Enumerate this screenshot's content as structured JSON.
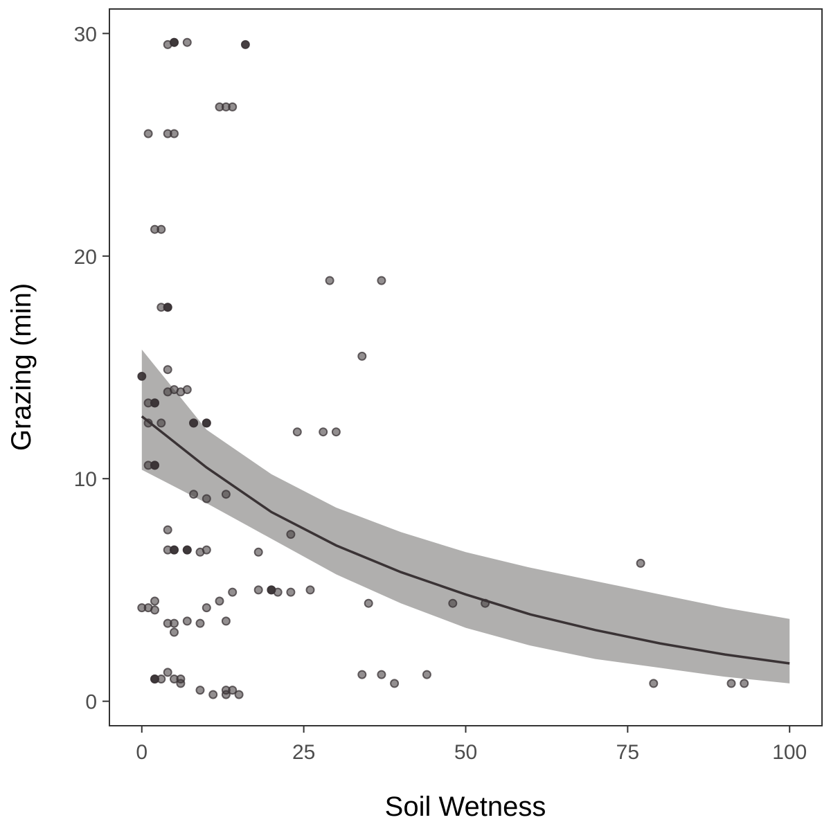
{
  "chart_data": {
    "type": "scatter",
    "title": "",
    "xlabel": "Soil Wetness",
    "ylabel": "Grazing (min)",
    "xlim": [
      -5,
      105
    ],
    "ylim": [
      -1.1,
      31.1
    ],
    "x_ticks": [
      0,
      25,
      50,
      75,
      100
    ],
    "y_ticks": [
      0,
      10,
      20,
      30
    ],
    "grid": false,
    "legend": "none",
    "colors": {
      "points": "#3a3335",
      "fit_line": "#3a3335",
      "band": "#b0afae",
      "frame": "#333333"
    },
    "points": [
      [
        5,
        29.6
      ],
      [
        7,
        29.6
      ],
      [
        4,
        29.5
      ],
      [
        16,
        29.5
      ],
      [
        5,
        29.6
      ],
      [
        12,
        26.7
      ],
      [
        13,
        26.7
      ],
      [
        14,
        26.7
      ],
      [
        1,
        25.5
      ],
      [
        4,
        25.5
      ],
      [
        5,
        25.5
      ],
      [
        2,
        21.2
      ],
      [
        3,
        21.2
      ],
      [
        29,
        18.9
      ],
      [
        37,
        18.9
      ],
      [
        3,
        17.7
      ],
      [
        4,
        17.7
      ],
      [
        4,
        17.7
      ],
      [
        34,
        15.5
      ],
      [
        4,
        14.9
      ],
      [
        0,
        14.6
      ],
      [
        4,
        13.9
      ],
      [
        5,
        14.0
      ],
      [
        6,
        13.9
      ],
      [
        7,
        14.0
      ],
      [
        1,
        13.4
      ],
      [
        2,
        13.4
      ],
      [
        2,
        13.4
      ],
      [
        1,
        12.5
      ],
      [
        3,
        12.5
      ],
      [
        8,
        12.5
      ],
      [
        8,
        12.5
      ],
      [
        10,
        12.5
      ],
      [
        10,
        12.5
      ],
      [
        24,
        12.1
      ],
      [
        28,
        12.1
      ],
      [
        30,
        12.1
      ],
      [
        1,
        10.6
      ],
      [
        2,
        10.6
      ],
      [
        2,
        10.6
      ],
      [
        8,
        9.3
      ],
      [
        10,
        9.1
      ],
      [
        13,
        9.3
      ],
      [
        4,
        7.7
      ],
      [
        23,
        7.5
      ],
      [
        4,
        6.8
      ],
      [
        5,
        6.8
      ],
      [
        5,
        6.8
      ],
      [
        7,
        6.8
      ],
      [
        7,
        6.8
      ],
      [
        9,
        6.7
      ],
      [
        10,
        6.8
      ],
      [
        18,
        6.7
      ],
      [
        77,
        6.2
      ],
      [
        18,
        5.0
      ],
      [
        20,
        5.0
      ],
      [
        20,
        5.0
      ],
      [
        21,
        4.9
      ],
      [
        23,
        4.9
      ],
      [
        26,
        5.0
      ],
      [
        14,
        4.9
      ],
      [
        2,
        4.5
      ],
      [
        12,
        4.5
      ],
      [
        35,
        4.4
      ],
      [
        48,
        4.4
      ],
      [
        53,
        4.4
      ],
      [
        0,
        4.2
      ],
      [
        1,
        4.2
      ],
      [
        2,
        4.1
      ],
      [
        10,
        4.2
      ],
      [
        4,
        3.5
      ],
      [
        5,
        3.5
      ],
      [
        7,
        3.6
      ],
      [
        9,
        3.5
      ],
      [
        13,
        3.6
      ],
      [
        5,
        3.1
      ],
      [
        4,
        1.3
      ],
      [
        34,
        1.2
      ],
      [
        37,
        1.2
      ],
      [
        44,
        1.2
      ],
      [
        2,
        1.0
      ],
      [
        2,
        1.0
      ],
      [
        3,
        1.0
      ],
      [
        5,
        1.0
      ],
      [
        6,
        1.0
      ],
      [
        6,
        0.8
      ],
      [
        39,
        0.8
      ],
      [
        79,
        0.8
      ],
      [
        91,
        0.8
      ],
      [
        93,
        0.8
      ],
      [
        9,
        0.5
      ],
      [
        13,
        0.5
      ],
      [
        14,
        0.5
      ],
      [
        11,
        0.3
      ],
      [
        13,
        0.3
      ],
      [
        15,
        0.3
      ]
    ],
    "dark_points": [
      [
        0,
        14.6
      ],
      [
        4,
        17.7
      ],
      [
        5,
        29.6
      ],
      [
        16,
        29.5
      ],
      [
        2,
        13.4
      ],
      [
        8,
        12.5
      ],
      [
        10,
        12.5
      ],
      [
        2,
        10.6
      ],
      [
        5,
        6.8
      ],
      [
        7,
        6.8
      ],
      [
        20,
        5.0
      ],
      [
        2,
        1.0
      ]
    ],
    "fit_line": {
      "x": [
        0,
        10,
        20,
        30,
        40,
        50,
        60,
        70,
        80,
        90,
        100
      ],
      "y": [
        12.8,
        10.5,
        8.5,
        7.0,
        5.8,
        4.8,
        3.9,
        3.2,
        2.6,
        2.1,
        1.7
      ]
    },
    "confidence_band": {
      "x": [
        0,
        10,
        20,
        30,
        40,
        50,
        60,
        70,
        80,
        90,
        100
      ],
      "upper": [
        15.8,
        12.2,
        10.2,
        8.7,
        7.6,
        6.7,
        6.0,
        5.4,
        4.8,
        4.2,
        3.7
      ],
      "lower": [
        10.4,
        8.9,
        7.3,
        5.7,
        4.4,
        3.3,
        2.5,
        1.9,
        1.5,
        1.1,
        0.8
      ]
    }
  }
}
